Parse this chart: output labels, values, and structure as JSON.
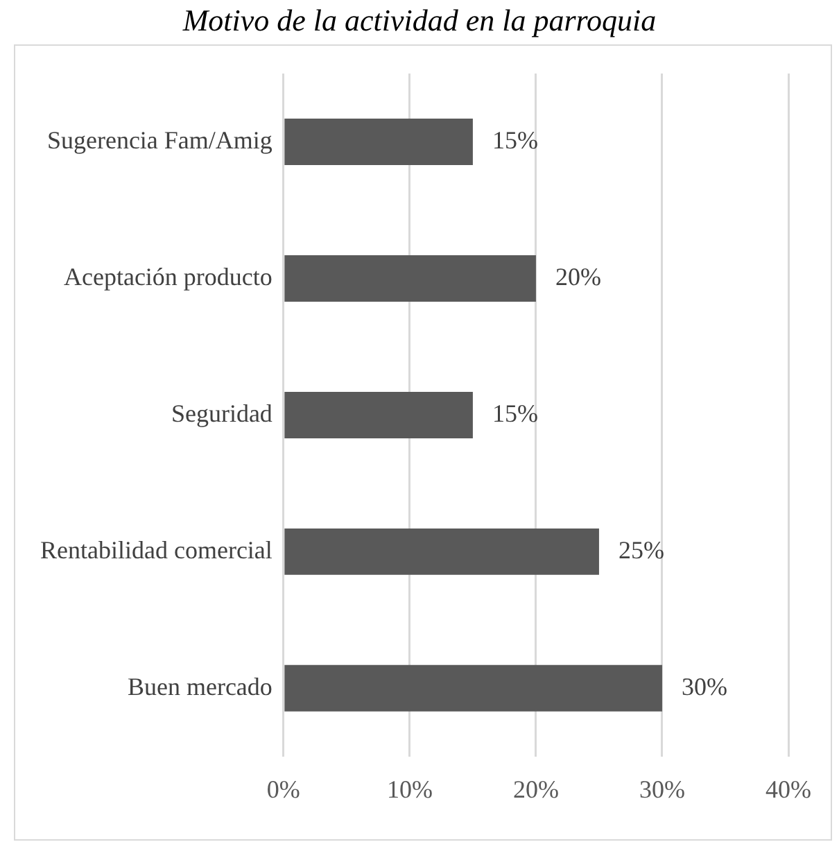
{
  "chart_data": {
    "type": "bar",
    "orientation": "horizontal",
    "title": "Motivo de la actividad en la parroquia",
    "categories": [
      "Sugerencia Fam/Amig",
      "Aceptación producto",
      "Seguridad",
      "Rentabilidad comercial",
      "Buen mercado"
    ],
    "values": [
      15,
      20,
      15,
      25,
      30
    ],
    "color": "#595959",
    "value_labels": [
      "15%",
      "20%",
      "15%",
      "25%",
      "30%"
    ],
    "xlim": [
      0,
      40
    ],
    "xticks": [
      {
        "value": 0,
        "label": "0%"
      },
      {
        "value": 10,
        "label": "10%"
      },
      {
        "value": 20,
        "label": "20%"
      },
      {
        "value": 30,
        "label": "30%"
      },
      {
        "value": 40,
        "label": "40%"
      }
    ],
    "grid": "x",
    "legend": false
  }
}
